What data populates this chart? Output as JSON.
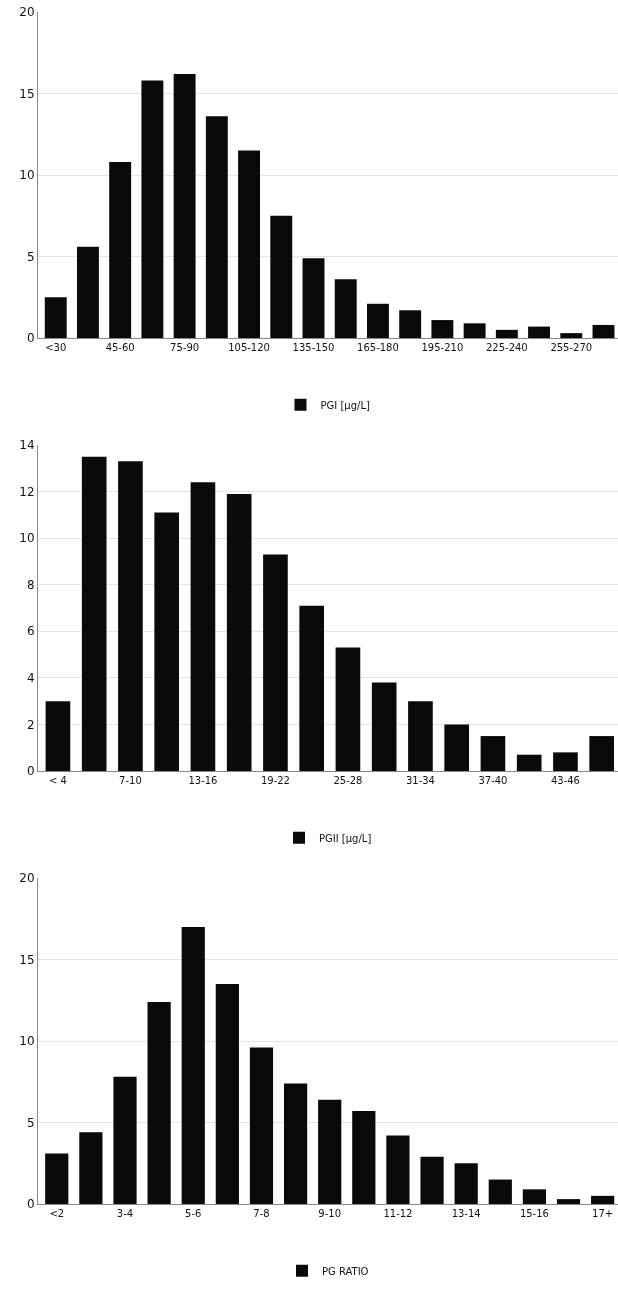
{
  "chart_data": [
    {
      "type": "bar",
      "categories": [
        "<30",
        null,
        "45-60",
        null,
        "75-90",
        null,
        "105-120",
        null,
        "135-150",
        null,
        "165-180",
        null,
        "195-210",
        null,
        "225-240",
        null,
        "255-270",
        null
      ],
      "series": [
        {
          "name": "PGI [µg/L]",
          "color": "#0a0a0a",
          "values": [
            2.5,
            5.6,
            10.8,
            15.8,
            16.2,
            13.6,
            11.5,
            7.5,
            4.9,
            3.6,
            2.1,
            1.7,
            1.1,
            0.9,
            0.5,
            0.7,
            0.3,
            0.8
          ]
        }
      ],
      "ylim": [
        0,
        20
      ],
      "yticks": [
        0,
        5,
        10,
        15,
        20
      ],
      "grid": "y",
      "legend": "bottom"
    },
    {
      "type": "bar",
      "categories": [
        "< 4",
        null,
        "7-10",
        null,
        "13-16",
        null,
        "19-22",
        null,
        "25-28",
        null,
        "31-34",
        null,
        "37-40",
        null,
        "43-46",
        null
      ],
      "series": [
        {
          "name": "PGII [µg/L]",
          "color": "#0a0a0a",
          "values": [
            3.0,
            13.5,
            13.3,
            11.1,
            12.4,
            11.9,
            9.3,
            7.1,
            5.3,
            3.8,
            3.0,
            2.0,
            1.5,
            0.7,
            0.8,
            1.5
          ]
        }
      ],
      "ylim": [
        0,
        14
      ],
      "yticks": [
        0,
        2,
        4,
        6,
        8,
        10,
        12,
        14
      ],
      "grid": "y",
      "legend": "bottom"
    },
    {
      "type": "bar",
      "categories": [
        "<2",
        null,
        "3-4",
        null,
        "5-6",
        null,
        "7-8",
        null,
        "9-10",
        null,
        "11-12",
        null,
        "13-14",
        null,
        "15-16",
        null,
        "17+"
      ],
      "series": [
        {
          "name": "PG RATIO",
          "color": "#0a0a0a",
          "values": [
            3.1,
            4.4,
            7.8,
            12.4,
            17.0,
            13.5,
            9.6,
            7.4,
            6.4,
            5.7,
            4.2,
            2.9,
            2.5,
            1.5,
            0.9,
            0.3,
            0.5
          ]
        }
      ],
      "ylim": [
        0,
        20
      ],
      "yticks": [
        0,
        5,
        10,
        15,
        20
      ],
      "grid": "y",
      "legend": "bottom"
    }
  ]
}
